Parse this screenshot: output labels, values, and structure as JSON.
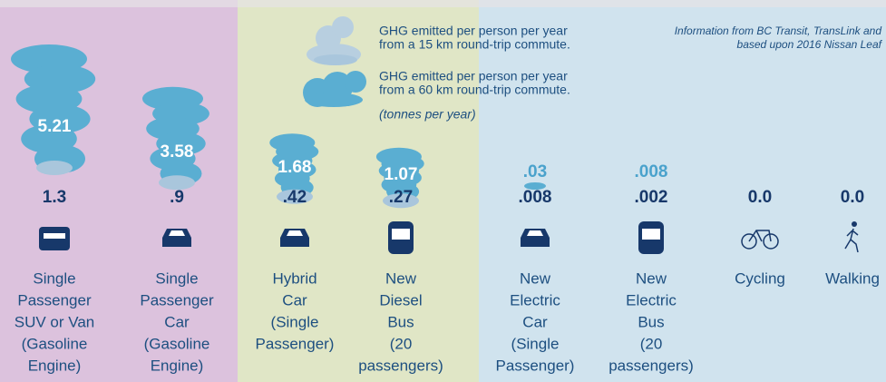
{
  "legend": {
    "short": [
      "GHG emitted per person per year",
      "from a 15 km round-trip commute."
    ],
    "long": [
      "GHG emitted per person per year",
      "from a 60 km round-trip commute."
    ],
    "units": "(tonnes per year)"
  },
  "source": [
    "Information from BC Transit, TransLink and",
    "based upon 2016 Nissan Leaf"
  ],
  "items": [
    {
      "long": "5.21",
      "short": "1.3",
      "label": [
        "Single",
        "Passenger",
        "SUV or Van",
        "(Gasoline",
        "Engine)"
      ]
    },
    {
      "long": "3.58",
      "short": ".9",
      "label": [
        "Single",
        "Passenger",
        "Car",
        "(Gasoline",
        "Engine)"
      ]
    },
    {
      "long": "1.68",
      "short": ".42",
      "label": [
        "Hybrid",
        "Car",
        "(Single",
        "Passenger)"
      ]
    },
    {
      "long": "1.07",
      "short": ".27",
      "label": [
        "New",
        "Diesel",
        "Bus",
        "(20",
        "passengers)"
      ]
    },
    {
      "long": ".03",
      "short": ".008",
      "label": [
        "New",
        "Electric",
        "Car",
        "(Single",
        "Passenger)"
      ]
    },
    {
      "long": ".008",
      "short": ".002",
      "label": [
        "New",
        "Electric",
        "Bus",
        "(20",
        "passengers)"
      ]
    },
    {
      "short": "0.0",
      "label": [
        "Cycling"
      ]
    },
    {
      "short": "0.0",
      "label": [
        "Walking"
      ]
    }
  ]
}
